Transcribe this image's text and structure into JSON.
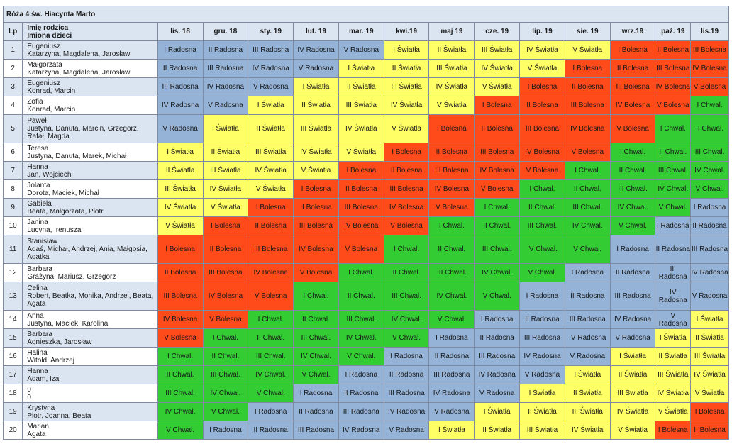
{
  "title": "Róża 4 św. Hiacynta Marto",
  "headers": {
    "lp": "Lp",
    "name_line1": "Imię rodzica",
    "name_line2": "Imiona dzieci",
    "months": [
      "lis. 18",
      "gru. 18",
      "sty. 19",
      "lut. 19",
      "mar. 19",
      "kwi.19",
      "maj 19",
      "cze. 19",
      "lip. 19",
      "sie. 19",
      "wrz.19",
      "paź. 19",
      "lis.19"
    ]
  },
  "colors": {
    "blue": "#95b3d7",
    "yellow": "#ffff66",
    "red": "#ff4a1a",
    "green": "#33cc33",
    "band": "#dbe5f1"
  },
  "rows": [
    {
      "lp": "1",
      "parent": "Eugeniusz",
      "children": "Katarzyna, Magdalena, Jarosław",
      "cells": [
        [
          "I Radosna",
          "blue"
        ],
        [
          "II Radosna",
          "blue"
        ],
        [
          "III Radosna",
          "blue"
        ],
        [
          "IV Radosna",
          "blue"
        ],
        [
          "V Radosna",
          "blue"
        ],
        [
          "I Światła",
          "yellow"
        ],
        [
          "II Światła",
          "yellow"
        ],
        [
          "III Światła",
          "yellow"
        ],
        [
          "IV Światła",
          "yellow"
        ],
        [
          "V Światła",
          "yellow"
        ],
        [
          "I Bolesna",
          "red"
        ],
        [
          "II Bolesna",
          "red"
        ],
        [
          "III Bolesna",
          "red"
        ]
      ]
    },
    {
      "lp": "2",
      "parent": "Małgorzata",
      "children": "Katarzyna, Magdalena, Jarosław",
      "cells": [
        [
          "II Radosna",
          "blue"
        ],
        [
          "III Radosna",
          "blue"
        ],
        [
          "IV Radosna",
          "blue"
        ],
        [
          "V Radosna",
          "blue"
        ],
        [
          "I Światła",
          "yellow"
        ],
        [
          "II Światła",
          "yellow"
        ],
        [
          "III Światła",
          "yellow"
        ],
        [
          "IV Światła",
          "yellow"
        ],
        [
          "V Światła",
          "yellow"
        ],
        [
          "I Bolesna",
          "red"
        ],
        [
          "II Bolesna",
          "red"
        ],
        [
          "III Bolesna",
          "red"
        ],
        [
          "IV Bolesna",
          "red"
        ]
      ]
    },
    {
      "lp": "3",
      "parent": "Eugeniusz",
      "children": "Konrad, Marcin",
      "cells": [
        [
          "III Radosna",
          "blue"
        ],
        [
          "IV Radosna",
          "blue"
        ],
        [
          "V Radosna",
          "blue"
        ],
        [
          "I Światła",
          "yellow"
        ],
        [
          "II Światła",
          "yellow"
        ],
        [
          "III Światła",
          "yellow"
        ],
        [
          "IV Światła",
          "yellow"
        ],
        [
          "V Światła",
          "yellow"
        ],
        [
          "I Bolesna",
          "red"
        ],
        [
          "II Bolesna",
          "red"
        ],
        [
          "III Bolesna",
          "red"
        ],
        [
          "IV Bolesna",
          "red"
        ],
        [
          "V Bolesna",
          "red"
        ]
      ]
    },
    {
      "lp": "4",
      "parent": "Zofia",
      "children": "Konrad, Marcin",
      "cells": [
        [
          "IV Radosna",
          "blue"
        ],
        [
          "V Radosna",
          "blue"
        ],
        [
          "I Światła",
          "yellow"
        ],
        [
          "II Światła",
          "yellow"
        ],
        [
          "III Światła",
          "yellow"
        ],
        [
          "IV Światła",
          "yellow"
        ],
        [
          "V Światła",
          "yellow"
        ],
        [
          "I Bolesna",
          "red"
        ],
        [
          "II Bolesna",
          "red"
        ],
        [
          "III Bolesna",
          "red"
        ],
        [
          "IV Bolesna",
          "red"
        ],
        [
          "V Bolesna",
          "red"
        ],
        [
          "I Chwal.",
          "green"
        ]
      ]
    },
    {
      "lp": "5",
      "parent": "Paweł",
      "children": "Justyna, Danuta, Marcin, Grzegorz, Rafał, Magda",
      "cells": [
        [
          "V Radosna",
          "blue"
        ],
        [
          "I Światła",
          "yellow"
        ],
        [
          "II Światła",
          "yellow"
        ],
        [
          "III Światła",
          "yellow"
        ],
        [
          "IV Światła",
          "yellow"
        ],
        [
          "V Światła",
          "yellow"
        ],
        [
          "I Bolesna",
          "red"
        ],
        [
          "II Bolesna",
          "red"
        ],
        [
          "III Bolesna",
          "red"
        ],
        [
          "IV Bolesna",
          "red"
        ],
        [
          "V Bolesna",
          "red"
        ],
        [
          "I Chwal.",
          "green"
        ],
        [
          "II Chwal.",
          "green"
        ]
      ]
    },
    {
      "lp": "6",
      "parent": "Teresa",
      "children": "Justyna, Danuta, Marek, Michał",
      "cells": [
        [
          "I Światła",
          "yellow"
        ],
        [
          "II Światła",
          "yellow"
        ],
        [
          "III Światła",
          "yellow"
        ],
        [
          "IV Światła",
          "yellow"
        ],
        [
          "V Światła",
          "yellow"
        ],
        [
          "I Bolesna",
          "red"
        ],
        [
          "II Bolesna",
          "red"
        ],
        [
          "III Bolesna",
          "red"
        ],
        [
          "IV Bolesna",
          "red"
        ],
        [
          "V Bolesna",
          "red"
        ],
        [
          "I Chwal.",
          "green"
        ],
        [
          "II Chwal.",
          "green"
        ],
        [
          "III Chwal.",
          "green"
        ]
      ]
    },
    {
      "lp": "7",
      "parent": "Hanna",
      "children": "Jan, Wojciech",
      "cells": [
        [
          "II Światła",
          "yellow"
        ],
        [
          "III Światła",
          "yellow"
        ],
        [
          "IV Światła",
          "yellow"
        ],
        [
          "V Światła",
          "yellow"
        ],
        [
          "I Bolesna",
          "red"
        ],
        [
          "II Bolesna",
          "red"
        ],
        [
          "III Bolesna",
          "red"
        ],
        [
          "IV Bolesna",
          "red"
        ],
        [
          "V Bolesna",
          "red"
        ],
        [
          "I Chwal.",
          "green"
        ],
        [
          "II Chwal.",
          "green"
        ],
        [
          "III Chwal.",
          "green"
        ],
        [
          "IV Chwal.",
          "green"
        ]
      ]
    },
    {
      "lp": "8",
      "parent": "Jolanta",
      "children": "Dorota, Maciek, Michał",
      "cells": [
        [
          "III Światła",
          "yellow"
        ],
        [
          "IV Światła",
          "yellow"
        ],
        [
          "V Światła",
          "yellow"
        ],
        [
          "I Bolesna",
          "red"
        ],
        [
          "II Bolesna",
          "red"
        ],
        [
          "III Bolesna",
          "red"
        ],
        [
          "IV Bolesna",
          "red"
        ],
        [
          "V Bolesna",
          "red"
        ],
        [
          "I Chwal.",
          "green"
        ],
        [
          "II Chwal.",
          "green"
        ],
        [
          "III Chwal.",
          "green"
        ],
        [
          "IV Chwal.",
          "green"
        ],
        [
          "V Chwal.",
          "green"
        ]
      ]
    },
    {
      "lp": "9",
      "parent": "Gabiela",
      "children": "Beata, Małgorzata, Piotr",
      "cells": [
        [
          "IV Światła",
          "yellow"
        ],
        [
          "V Światła",
          "yellow"
        ],
        [
          "I Bolesna",
          "red"
        ],
        [
          "II Bolesna",
          "red"
        ],
        [
          "III Bolesna",
          "red"
        ],
        [
          "IV Bolesna",
          "red"
        ],
        [
          "V Bolesna",
          "red"
        ],
        [
          "I Chwal.",
          "green"
        ],
        [
          "II Chwal.",
          "green"
        ],
        [
          "III Chwal.",
          "green"
        ],
        [
          "IV Chwal.",
          "green"
        ],
        [
          "V Chwal.",
          "green"
        ],
        [
          "I Radosna",
          "blue"
        ]
      ]
    },
    {
      "lp": "10",
      "parent": "Janina",
      "children": "Lucyna, Irenusza",
      "cells": [
        [
          "V Światła",
          "yellow"
        ],
        [
          "I Bolesna",
          "red"
        ],
        [
          "II Bolesna",
          "red"
        ],
        [
          "III Bolesna",
          "red"
        ],
        [
          "IV Bolesna",
          "red"
        ],
        [
          "V Bolesna",
          "red"
        ],
        [
          "I Chwal.",
          "green"
        ],
        [
          "II Chwal.",
          "green"
        ],
        [
          "III Chwal.",
          "green"
        ],
        [
          "IV Chwal.",
          "green"
        ],
        [
          "V Chwal.",
          "green"
        ],
        [
          "I Radosna",
          "blue"
        ],
        [
          "II Radosna",
          "blue"
        ]
      ]
    },
    {
      "lp": "11",
      "parent": "Stanisław",
      "children": "Adaś, Michał, Andrzej, Ania, Małgosia, Agatka",
      "cells": [
        [
          "I Bolesna",
          "red"
        ],
        [
          "II Bolesna",
          "red"
        ],
        [
          "III Bolesna",
          "red"
        ],
        [
          "IV Bolesna",
          "red"
        ],
        [
          "V Bolesna",
          "red"
        ],
        [
          "I Chwal.",
          "green"
        ],
        [
          "II Chwal.",
          "green"
        ],
        [
          "III Chwal.",
          "green"
        ],
        [
          "IV Chwal.",
          "green"
        ],
        [
          "V Chwal.",
          "green"
        ],
        [
          "I Radosna",
          "blue"
        ],
        [
          "II Radosna",
          "blue"
        ],
        [
          "III Radosna",
          "blue"
        ]
      ]
    },
    {
      "lp": "12",
      "parent": "Barbara",
      "children": "Grażyna, Mariusz, Grzegorz",
      "cells": [
        [
          "II Bolesna",
          "red"
        ],
        [
          "III Bolesna",
          "red"
        ],
        [
          "IV Bolesna",
          "red"
        ],
        [
          "V Bolesna",
          "red"
        ],
        [
          "I Chwal.",
          "green"
        ],
        [
          "II Chwal.",
          "green"
        ],
        [
          "III Chwal.",
          "green"
        ],
        [
          "IV Chwal.",
          "green"
        ],
        [
          "V Chwal.",
          "green"
        ],
        [
          "I Radosna",
          "blue"
        ],
        [
          "II Radosna",
          "blue"
        ],
        [
          "III Radosna",
          "blue"
        ],
        [
          "IV Radosna",
          "blue"
        ]
      ]
    },
    {
      "lp": "13",
      "parent": "Celina",
      "children": "Robert, Beatka, Monika, Andrzej, Beata, Agata",
      "cells": [
        [
          "III Bolesna",
          "red"
        ],
        [
          "IV Bolesna",
          "red"
        ],
        [
          "V Bolesna",
          "red"
        ],
        [
          "I Chwal.",
          "green"
        ],
        [
          "II Chwal.",
          "green"
        ],
        [
          "III Chwal.",
          "green"
        ],
        [
          "IV Chwal.",
          "green"
        ],
        [
          "V Chwal.",
          "green"
        ],
        [
          "I Radosna",
          "blue"
        ],
        [
          "II Radosna",
          "blue"
        ],
        [
          "III Radosna",
          "blue"
        ],
        [
          "IV Radosna",
          "blue"
        ],
        [
          "V Radosna",
          "blue"
        ]
      ]
    },
    {
      "lp": "14",
      "parent": "Anna",
      "children": "Justyna, Maciek, Karolina",
      "cells": [
        [
          "IV Bolesna",
          "red"
        ],
        [
          "V Bolesna",
          "red"
        ],
        [
          "I Chwal.",
          "green"
        ],
        [
          "II Chwal.",
          "green"
        ],
        [
          "III Chwal.",
          "green"
        ],
        [
          "IV Chwal.",
          "green"
        ],
        [
          "V Chwal.",
          "green"
        ],
        [
          "I Radosna",
          "blue"
        ],
        [
          "II Radosna",
          "blue"
        ],
        [
          "III Radosna",
          "blue"
        ],
        [
          "IV Radosna",
          "blue"
        ],
        [
          "V Radosna",
          "blue"
        ],
        [
          "I Światła",
          "yellow"
        ]
      ]
    },
    {
      "lp": "15",
      "parent": "Barbara",
      "children": "Agnieszka, Jarosław",
      "cells": [
        [
          "V Bolesna",
          "red"
        ],
        [
          "I Chwal.",
          "green"
        ],
        [
          "II Chwal.",
          "green"
        ],
        [
          "III Chwal.",
          "green"
        ],
        [
          "IV Chwal.",
          "green"
        ],
        [
          "V Chwal.",
          "green"
        ],
        [
          "I Radosna",
          "blue"
        ],
        [
          "II Radosna",
          "blue"
        ],
        [
          "III Radosna",
          "blue"
        ],
        [
          "IV Radosna",
          "blue"
        ],
        [
          "V Radosna",
          "blue"
        ],
        [
          "I Światła",
          "yellow"
        ],
        [
          "II Światła",
          "yellow"
        ]
      ]
    },
    {
      "lp": "16",
      "parent": "Halina",
      "children": "Witold, Andrzej",
      "cells": [
        [
          "I Chwal.",
          "green"
        ],
        [
          "II Chwal.",
          "green"
        ],
        [
          "III Chwal.",
          "green"
        ],
        [
          "IV Chwal.",
          "green"
        ],
        [
          "V Chwal.",
          "green"
        ],
        [
          "I Radosna",
          "blue"
        ],
        [
          "II Radosna",
          "blue"
        ],
        [
          "III Radosna",
          "blue"
        ],
        [
          "IV Radosna",
          "blue"
        ],
        [
          "V Radosna",
          "blue"
        ],
        [
          "I Światła",
          "yellow"
        ],
        [
          "II Światła",
          "yellow"
        ],
        [
          "III Światła",
          "yellow"
        ]
      ]
    },
    {
      "lp": "17",
      "parent": "Hanna",
      "children": "Adam, Iza",
      "cells": [
        [
          "II Chwal.",
          "green"
        ],
        [
          "III Chwal.",
          "green"
        ],
        [
          "IV Chwal.",
          "green"
        ],
        [
          "V Chwal.",
          "green"
        ],
        [
          "I Radosna",
          "blue"
        ],
        [
          "II Radosna",
          "blue"
        ],
        [
          "III Radosna",
          "blue"
        ],
        [
          "IV Radosna",
          "blue"
        ],
        [
          "V Radosna",
          "blue"
        ],
        [
          "I Światła",
          "yellow"
        ],
        [
          "II Światła",
          "yellow"
        ],
        [
          "III Światła",
          "yellow"
        ],
        [
          "IV Światła",
          "yellow"
        ]
      ]
    },
    {
      "lp": "18",
      "parent": "0",
      "children": "0",
      "cells": [
        [
          "III Chwal.",
          "green"
        ],
        [
          "IV Chwal.",
          "green"
        ],
        [
          "V Chwal.",
          "green"
        ],
        [
          "I Radosna",
          "blue"
        ],
        [
          "II Radosna",
          "blue"
        ],
        [
          "III Radosna",
          "blue"
        ],
        [
          "IV Radosna",
          "blue"
        ],
        [
          "V Radosna",
          "blue"
        ],
        [
          "I Światła",
          "yellow"
        ],
        [
          "II Światła",
          "yellow"
        ],
        [
          "III Światła",
          "yellow"
        ],
        [
          "IV Światła",
          "yellow"
        ],
        [
          "V Światła",
          "yellow"
        ]
      ]
    },
    {
      "lp": "19",
      "parent": "Krystyna",
      "children": "Piotr, Joanna, Beata",
      "cells": [
        [
          "IV Chwal.",
          "green"
        ],
        [
          "V Chwal.",
          "green"
        ],
        [
          "I Radosna",
          "blue"
        ],
        [
          "II Radosna",
          "blue"
        ],
        [
          "III Radosna",
          "blue"
        ],
        [
          "IV Radosna",
          "blue"
        ],
        [
          "V Radosna",
          "blue"
        ],
        [
          "I Światła",
          "yellow"
        ],
        [
          "II Światła",
          "yellow"
        ],
        [
          "III Światła",
          "yellow"
        ],
        [
          "IV Światła",
          "yellow"
        ],
        [
          "V Światła",
          "yellow"
        ],
        [
          "I Bolesna",
          "red"
        ]
      ]
    },
    {
      "lp": "20",
      "parent": "Marian",
      "children": "Agata",
      "cells": [
        [
          "V Chwal.",
          "green"
        ],
        [
          "I Radosna",
          "blue"
        ],
        [
          "II Radosna",
          "blue"
        ],
        [
          "III Radosna",
          "blue"
        ],
        [
          "IV Radosna",
          "blue"
        ],
        [
          "V Radosna",
          "blue"
        ],
        [
          "I Światła",
          "yellow"
        ],
        [
          "II Światła",
          "yellow"
        ],
        [
          "III Światła",
          "yellow"
        ],
        [
          "IV Światła",
          "yellow"
        ],
        [
          "V Światła",
          "yellow"
        ],
        [
          "I Bolesna",
          "red"
        ],
        [
          "II Bolesna",
          "red"
        ]
      ]
    }
  ]
}
